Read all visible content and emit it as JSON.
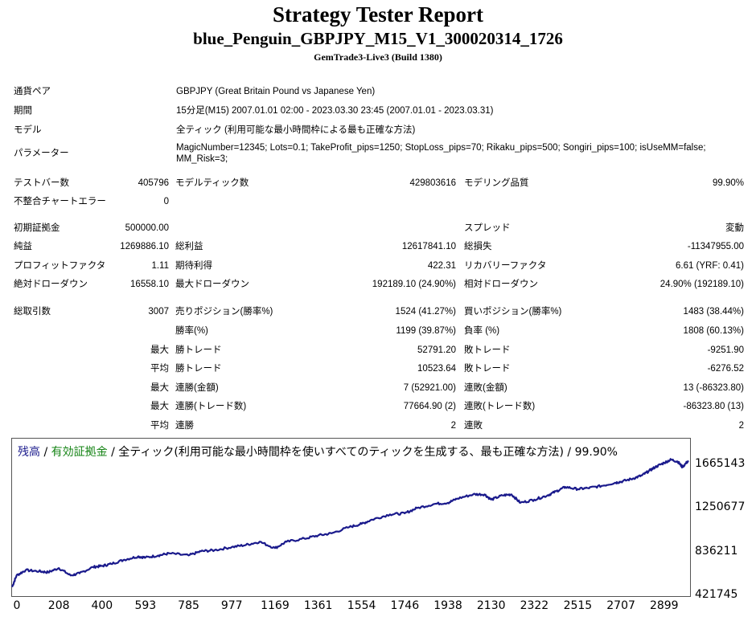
{
  "header": {
    "title": "Strategy Tester Report",
    "subtitle": "blue_Penguin_GBPJPY_M15_V1_300020314_1726",
    "build": "GemTrade3-Live3 (Build 1380)"
  },
  "info": {
    "pair_label": "通貨ペア",
    "pair_value": "GBPJPY (Great Britain Pound vs Japanese Yen)",
    "period_label": "期間",
    "period_value": "15分足(M15) 2007.01.01 02:00 - 2023.03.30 23:45 (2007.01.01 - 2023.03.31)",
    "model_label": "モデル",
    "model_value": "全ティック (利用可能な最小時間枠による最も正確な方法)",
    "params_label": "パラメーター",
    "params_line1": "MagicNumber=12345; Lots=0.1; TakeProfit_pips=1250; StopLoss_pips=70; Rikaku_pips=500; Songiri_pips=100; isUseMM=false;",
    "params_line2": "MM_Risk=3;"
  },
  "stats": {
    "bars_label": "テストバー数",
    "bars_value": "405796",
    "ticks_label": "モデルティック数",
    "ticks_value": "429803616",
    "quality_label": "モデリング品質",
    "quality_value": "99.90%",
    "mismatch_label": "不整合チャートエラー",
    "mismatch_value": "0",
    "deposit_label": "初期証拠金",
    "deposit_value": "500000.00",
    "spread_label": "スプレッド",
    "spread_value": "変動",
    "net_label": "純益",
    "net_value": "1269886.10",
    "gross_profit_label": "総利益",
    "gross_profit_value": "12617841.10",
    "gross_loss_label": "総損失",
    "gross_loss_value": "-11347955.00",
    "pf_label": "プロフィットファクタ",
    "pf_value": "1.11",
    "payoff_label": "期待利得",
    "payoff_value": "422.31",
    "recovery_label": "リカバリーファクタ",
    "recovery_value": "6.61 (YRF: 0.41)",
    "abs_dd_label": "絶対ドローダウン",
    "abs_dd_value": "16558.10",
    "max_dd_label": "最大ドローダウン",
    "max_dd_value": "192189.10 (24.90%)",
    "rel_dd_label": "相対ドローダウン",
    "rel_dd_value": "24.90% (192189.10)",
    "trades_label": "総取引数",
    "trades_value": "3007",
    "short_label": "売りポジション(勝率%)",
    "short_value": "1524 (41.27%)",
    "long_label": "買いポジション(勝率%)",
    "long_value": "1483 (38.44%)",
    "win_label": "勝率(%)",
    "win_value": "1199 (39.87%)",
    "loss_label": "負率 (%)",
    "loss_value": "1808 (60.13%)",
    "max1": "最大",
    "largest_win_label": "勝トレード",
    "largest_win_value": "52791.20",
    "largest_loss_label": "敗トレード",
    "largest_loss_value": "-9251.90",
    "avg1": "平均",
    "avg_win_label": "勝トレード",
    "avg_win_value": "10523.64",
    "avg_loss_label": "敗トレード",
    "avg_loss_value": "-6276.52",
    "max2": "最大",
    "cons_win_amt_label": "連勝(金額)",
    "cons_win_amt_value": "7 (52921.00)",
    "cons_loss_amt_label": "連敗(金額)",
    "cons_loss_amt_value": "13 (-86323.80)",
    "max3": "最大",
    "cons_win_tr_label": "連勝(トレード数)",
    "cons_win_tr_value": "77664.90 (2)",
    "cons_loss_tr_label": "連敗(トレード数)",
    "cons_loss_tr_value": "-86323.80 (13)",
    "avg2": "平均",
    "avg_cons_win_label": "連勝",
    "avg_cons_win_value": "2",
    "avg_cons_loss_label": "連敗",
    "avg_cons_loss_value": "2"
  },
  "chart_data": {
    "type": "line",
    "legend_balance": "残高",
    "legend_sep1": " / ",
    "legend_equity": "有効証拠金",
    "legend_sep2": " / ",
    "legend_rest": "全ティック(利用可能な最小時間枠を使いすべてのティックを生成する、最も正確な方法) / 99.90%",
    "series_color": "#1a1a8c",
    "balance_color": "#1a1a8c",
    "equity_color": "#168416",
    "x_ticks": [
      "0",
      "208",
      "400",
      "593",
      "785",
      "977",
      "1169",
      "1361",
      "1554",
      "1746",
      "1938",
      "2130",
      "2322",
      "2515",
      "2707",
      "2899"
    ],
    "y_ticks": [
      "1665143",
      "1250677",
      "836211",
      "421745"
    ],
    "xlim": [
      0,
      3007
    ],
    "ylim": [
      421745,
      1665143
    ],
    "series": [
      {
        "name": "残高",
        "x": [
          0,
          20,
          60,
          120,
          160,
          208,
          260,
          300,
          360,
          400,
          440,
          500,
          560,
          593,
          650,
          700,
          785,
          840,
          900,
          977,
          1040,
          1100,
          1169,
          1220,
          1300,
          1361,
          1420,
          1500,
          1554,
          1600,
          1680,
          1746,
          1800,
          1880,
          1938,
          1980,
          2050,
          2100,
          2130,
          2180,
          2220,
          2260,
          2322,
          2380,
          2420,
          2460,
          2515,
          2560,
          2620,
          2680,
          2707,
          2760,
          2800,
          2830,
          2860,
          2899,
          2930,
          2960,
          2980,
          3007
        ],
        "y": [
          500000,
          610000,
          660000,
          650000,
          640000,
          680000,
          610000,
          630000,
          690000,
          700000,
          720000,
          760000,
          790000,
          780000,
          800000,
          820000,
          800000,
          840000,
          850000,
          880000,
          900000,
          930000,
          870000,
          930000,
          960000,
          990000,
          1010000,
          1070000,
          1100000,
          1140000,
          1190000,
          1200000,
          1250000,
          1290000,
          1300000,
          1340000,
          1380000,
          1380000,
          1330000,
          1370000,
          1380000,
          1300000,
          1330000,
          1370000,
          1410000,
          1450000,
          1430000,
          1440000,
          1460000,
          1490000,
          1500000,
          1530000,
          1560000,
          1600000,
          1640000,
          1680000,
          1710000,
          1690000,
          1640000,
          1700000
        ]
      }
    ]
  }
}
